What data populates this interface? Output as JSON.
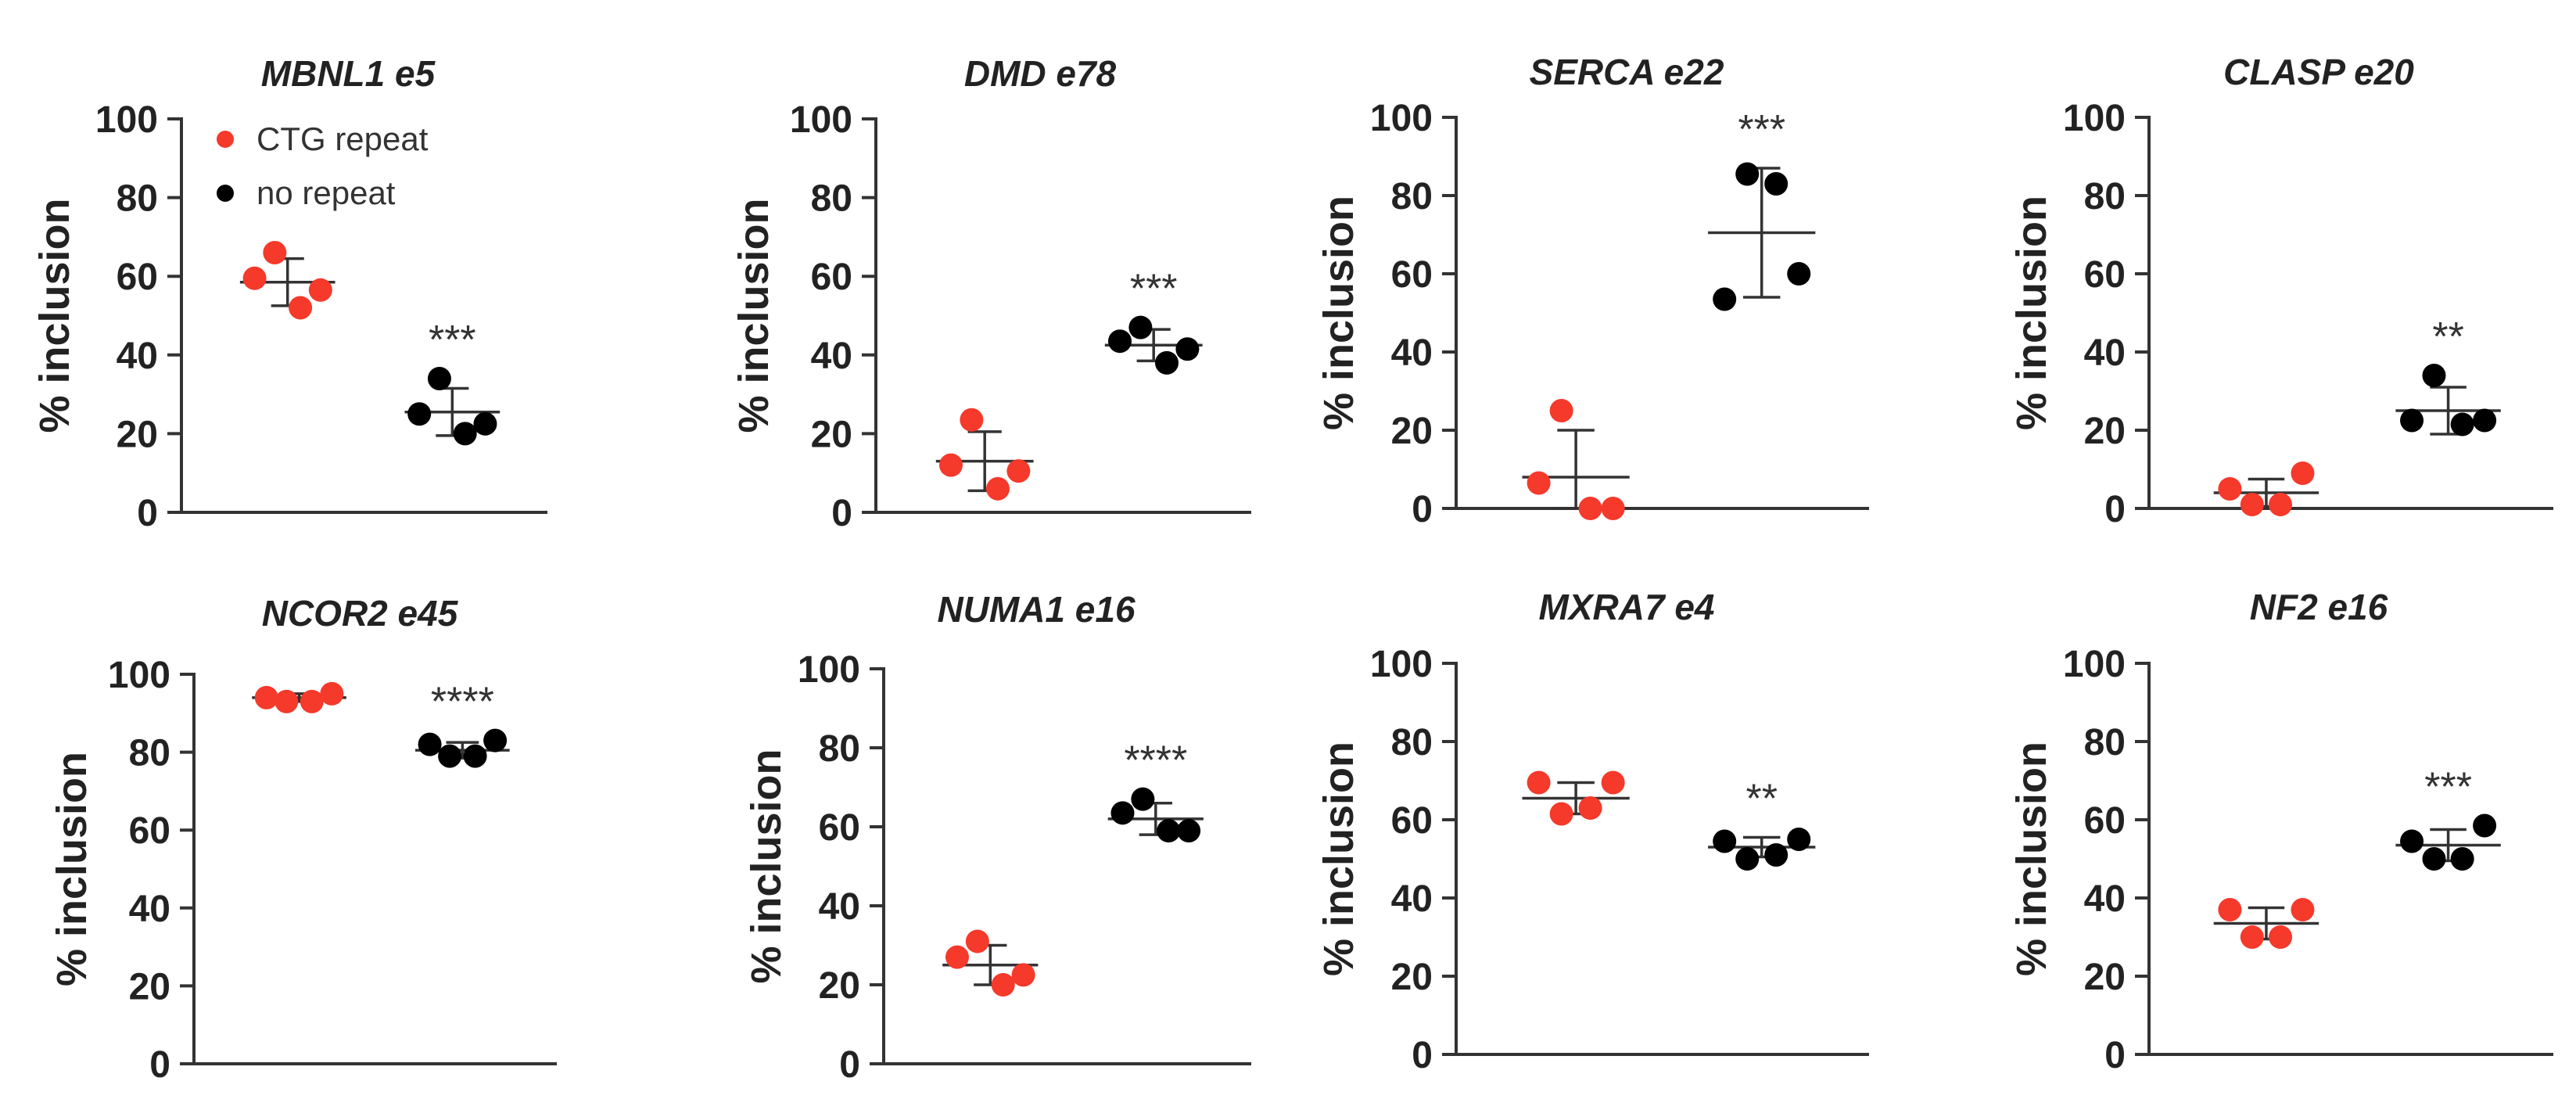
{
  "chart_data": [
    {
      "type": "scatter",
      "title": "MBNL1 e5",
      "ylabel": "% inclusion",
      "ylim": [
        0,
        100
      ],
      "yticks": [
        0,
        20,
        40,
        60,
        80,
        100
      ],
      "legend": "top-right",
      "series": [
        {
          "name": "CTG repeat",
          "color": "#f5392b",
          "values": [
            59.5,
            66,
            52,
            56.5
          ],
          "mean": 58.5,
          "sd": 6
        },
        {
          "name": "no repeat",
          "color": "#000000",
          "values": [
            25,
            34,
            20,
            22.5
          ],
          "mean": 25.5,
          "sd": 6
        }
      ],
      "significance": "***"
    },
    {
      "type": "scatter",
      "title": "DMD e78",
      "ylabel": "% inclusion",
      "ylim": [
        0,
        100
      ],
      "yticks": [
        0,
        20,
        40,
        60,
        80,
        100
      ],
      "series": [
        {
          "name": "CTG repeat",
          "color": "#f5392b",
          "values": [
            12,
            23.5,
            6,
            10.5
          ],
          "mean": 13,
          "sd": 7.5
        },
        {
          "name": "no repeat",
          "color": "#000000",
          "values": [
            43.5,
            47,
            38,
            41.5
          ],
          "mean": 42.5,
          "sd": 4
        }
      ],
      "significance": "***"
    },
    {
      "type": "scatter",
      "title": "SERCA e22",
      "ylabel": "% inclusion",
      "ylim": [
        0,
        100
      ],
      "yticks": [
        0,
        20,
        40,
        60,
        80,
        100
      ],
      "series": [
        {
          "name": "CTG repeat",
          "color": "#f5392b",
          "values": [
            6.5,
            25,
            0,
            0
          ],
          "mean": 8,
          "sd": 12
        },
        {
          "name": "no repeat",
          "color": "#000000",
          "values": [
            53.5,
            85.5,
            83,
            60
          ],
          "mean": 70.5,
          "sd": 16.5
        }
      ],
      "significance": "***"
    },
    {
      "type": "scatter",
      "title": "CLASP e20",
      "ylabel": "% inclusion",
      "ylim": [
        0,
        100
      ],
      "yticks": [
        0,
        20,
        40,
        60,
        80,
        100
      ],
      "series": [
        {
          "name": "CTG repeat",
          "color": "#f5392b",
          "values": [
            5,
            1,
            1,
            9
          ],
          "mean": 4,
          "sd": 3.5
        },
        {
          "name": "no repeat",
          "color": "#000000",
          "values": [
            22.5,
            34,
            21.5,
            22.5
          ],
          "mean": 25,
          "sd": 6
        }
      ],
      "significance": "**"
    },
    {
      "type": "scatter",
      "title": "NCOR2 e45",
      "ylabel": "% inclusion",
      "ylim": [
        0,
        100
      ],
      "yticks": [
        0,
        20,
        40,
        60,
        80,
        100
      ],
      "series": [
        {
          "name": "CTG repeat",
          "color": "#f5392b",
          "values": [
            94,
            93,
            93,
            95
          ],
          "mean": 94,
          "sd": 1
        },
        {
          "name": "no repeat",
          "color": "#000000",
          "values": [
            82,
            79,
            79,
            83
          ],
          "mean": 80.5,
          "sd": 2
        }
      ],
      "significance": "****"
    },
    {
      "type": "scatter",
      "title": "NUMA1 e16",
      "ylabel": "% inclusion",
      "ylim": [
        0,
        100
      ],
      "yticks": [
        0,
        20,
        40,
        60,
        80,
        100
      ],
      "series": [
        {
          "name": "CTG repeat",
          "color": "#f5392b",
          "values": [
            27,
            31,
            20,
            22.5
          ],
          "mean": 25,
          "sd": 5
        },
        {
          "name": "no repeat",
          "color": "#000000",
          "values": [
            63.5,
            67,
            59,
            59
          ],
          "mean": 62,
          "sd": 4
        }
      ],
      "significance": "****"
    },
    {
      "type": "scatter",
      "title": "MXRA7 e4",
      "ylabel": "% inclusion",
      "ylim": [
        0,
        100
      ],
      "yticks": [
        0,
        20,
        40,
        60,
        80,
        100
      ],
      "series": [
        {
          "name": "CTG repeat",
          "color": "#f5392b",
          "values": [
            69.5,
            61.5,
            63,
            69.5
          ],
          "mean": 65.5,
          "sd": 4
        },
        {
          "name": "no repeat",
          "color": "#000000",
          "values": [
            54.5,
            50,
            51,
            55
          ],
          "mean": 53,
          "sd": 2.5
        }
      ],
      "significance": "**"
    },
    {
      "type": "scatter",
      "title": "NF2 e16",
      "ylabel": "% inclusion",
      "ylim": [
        0,
        100
      ],
      "yticks": [
        0,
        20,
        40,
        60,
        80,
        100
      ],
      "series": [
        {
          "name": "CTG repeat",
          "color": "#f5392b",
          "values": [
            37,
            30,
            30,
            37
          ],
          "mean": 33.5,
          "sd": 4
        },
        {
          "name": "no repeat",
          "color": "#000000",
          "values": [
            54.5,
            50,
            50,
            58.5
          ],
          "mean": 53.5,
          "sd": 4
        }
      ],
      "significance": "***"
    }
  ]
}
